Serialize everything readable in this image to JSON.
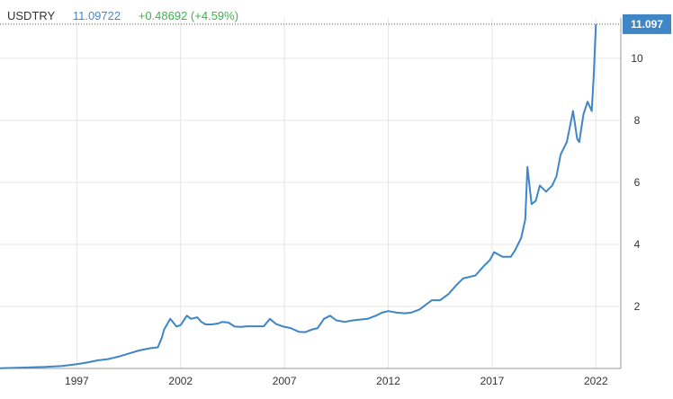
{
  "header": {
    "symbol": "USDTRY",
    "last": "11.09722",
    "change": "+0.48692 (+4.59%)"
  },
  "colors": {
    "line": "#3f86c6",
    "grid": "#e6e6e6",
    "axis_text": "#333333",
    "badge_bg": "#3f86c6",
    "badge_text": "#ffffff",
    "positive": "#3cb44b"
  },
  "chart_data": {
    "type": "line",
    "title": "",
    "xlabel": "",
    "ylabel": "",
    "x_ticks": [
      "1997",
      "2002",
      "2007",
      "2012",
      "2017",
      "2022"
    ],
    "y_ticks": [
      "2",
      "4",
      "6",
      "8",
      "10"
    ],
    "xlim": [
      1993.3,
      2023.2
    ],
    "ylim": [
      0,
      11.3
    ],
    "last_value_label": "11.097",
    "grid": true,
    "series": [
      {
        "x": [
          1993.3,
          1994.5,
          1995.5,
          1996.3,
          1997.0,
          1997.5,
          1998.0,
          1998.5,
          1999.0,
          1999.5,
          2000.0,
          2000.5,
          2000.9,
          2001.1,
          2001.2,
          2001.5,
          2001.8,
          2002.0,
          2002.3,
          2002.5,
          2002.8,
          2003.0,
          2003.2,
          2003.5,
          2003.8,
          2004.0,
          2004.3,
          2004.6,
          2004.9,
          2005.2,
          2005.6,
          2006.0,
          2006.3,
          2006.6,
          2006.9,
          2007.3,
          2007.7,
          2008.0,
          2008.3,
          2008.6,
          2008.9,
          2009.2,
          2009.5,
          2009.9,
          2010.3,
          2010.7,
          2011.0,
          2011.4,
          2011.7,
          2012.0,
          2012.4,
          2012.8,
          2013.1,
          2013.5,
          2013.9,
          2014.1,
          2014.5,
          2014.9,
          2015.3,
          2015.6,
          2015.9,
          2016.2,
          2016.6,
          2016.9,
          2017.1,
          2017.5,
          2017.9,
          2018.1,
          2018.4,
          2018.6,
          2018.7,
          2018.9,
          2019.1,
          2019.3,
          2019.6,
          2019.9,
          2020.1,
          2020.3,
          2020.6,
          2020.9,
          2021.1,
          2021.2,
          2021.4,
          2021.6,
          2021.8,
          2021.9,
          2022.0
        ],
        "y": [
          0.01,
          0.03,
          0.05,
          0.08,
          0.14,
          0.19,
          0.26,
          0.3,
          0.38,
          0.48,
          0.58,
          0.65,
          0.68,
          1.0,
          1.25,
          1.6,
          1.35,
          1.4,
          1.7,
          1.6,
          1.65,
          1.5,
          1.42,
          1.42,
          1.45,
          1.5,
          1.48,
          1.35,
          1.34,
          1.36,
          1.36,
          1.36,
          1.6,
          1.43,
          1.36,
          1.3,
          1.18,
          1.17,
          1.25,
          1.3,
          1.6,
          1.7,
          1.55,
          1.5,
          1.55,
          1.58,
          1.6,
          1.7,
          1.8,
          1.85,
          1.8,
          1.78,
          1.8,
          1.9,
          2.1,
          2.2,
          2.2,
          2.4,
          2.7,
          2.9,
          2.95,
          3.0,
          3.3,
          3.5,
          3.75,
          3.6,
          3.6,
          3.8,
          4.2,
          4.8,
          6.5,
          5.3,
          5.4,
          5.9,
          5.7,
          5.9,
          6.2,
          6.9,
          7.3,
          8.3,
          7.4,
          7.3,
          8.2,
          8.6,
          8.3,
          9.5,
          11.1
        ]
      }
    ]
  }
}
